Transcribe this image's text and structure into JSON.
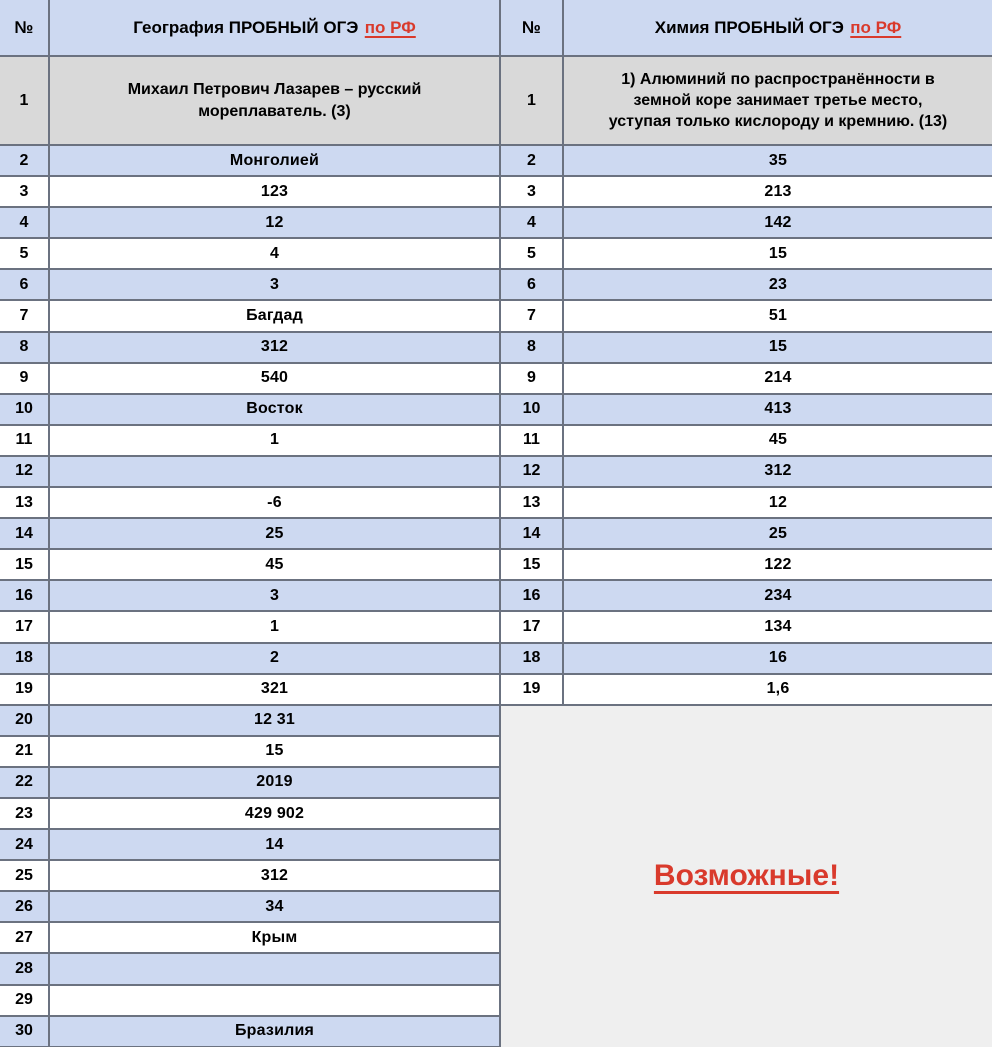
{
  "colors": {
    "row_blue": "#cdd9f1",
    "row_white": "#ffffff",
    "q1_gray": "#d9d9d9",
    "panel_gray": "#efefef",
    "border": "#6b7280",
    "accent_red": "#d93a2c",
    "text": "#000000"
  },
  "geography_table": {
    "header": {
      "number_label": "№",
      "title": "География ПРОБНЫЙ ОГЭ",
      "link_label": "по РФ"
    },
    "question1": {
      "number": "1",
      "text": "Михаил Петрович Лазарев – русский\nмореплаватель. (3)"
    },
    "rows": [
      {
        "n": "2",
        "v": "Монголией"
      },
      {
        "n": "3",
        "v": "123"
      },
      {
        "n": "4",
        "v": "12"
      },
      {
        "n": "5",
        "v": "4"
      },
      {
        "n": "6",
        "v": "3"
      },
      {
        "n": "7",
        "v": "Багдад"
      },
      {
        "n": "8",
        "v": "312"
      },
      {
        "n": "9",
        "v": "540"
      },
      {
        "n": "10",
        "v": "Восток"
      },
      {
        "n": "11",
        "v": "1"
      },
      {
        "n": "12",
        "v": ""
      },
      {
        "n": "13",
        "v": "-6"
      },
      {
        "n": "14",
        "v": "25"
      },
      {
        "n": "15",
        "v": "45"
      },
      {
        "n": "16",
        "v": "3"
      },
      {
        "n": "17",
        "v": "1"
      },
      {
        "n": "18",
        "v": "2"
      },
      {
        "n": "19",
        "v": "321"
      },
      {
        "n": "20",
        "v": "12 31"
      },
      {
        "n": "21",
        "v": "15"
      },
      {
        "n": "22",
        "v": "2019"
      },
      {
        "n": "23",
        "v": "429 902"
      },
      {
        "n": "24",
        "v": "14"
      },
      {
        "n": "25",
        "v": "312"
      },
      {
        "n": "26",
        "v": "34"
      },
      {
        "n": "27",
        "v": "Крым"
      },
      {
        "n": "28",
        "v": ""
      },
      {
        "n": "29",
        "v": ""
      },
      {
        "n": "30",
        "v": "Бразилия"
      }
    ]
  },
  "chemistry_table": {
    "header": {
      "number_label": "№",
      "title": "Химия ПРОБНЫЙ ОГЭ",
      "link_label": "по РФ"
    },
    "question1": {
      "number": "1",
      "text": "1) Алюминий по распространённости в\nземной коре занимает третье место,\nуступая только кислороду и кремнию. (13)"
    },
    "rows": [
      {
        "n": "2",
        "v": "35"
      },
      {
        "n": "3",
        "v": "213"
      },
      {
        "n": "4",
        "v": "142"
      },
      {
        "n": "5",
        "v": "15"
      },
      {
        "n": "6",
        "v": "23"
      },
      {
        "n": "7",
        "v": "51"
      },
      {
        "n": "8",
        "v": "15"
      },
      {
        "n": "9",
        "v": "214"
      },
      {
        "n": "10",
        "v": "413"
      },
      {
        "n": "11",
        "v": "45"
      },
      {
        "n": "12",
        "v": "312"
      },
      {
        "n": "13",
        "v": "12"
      },
      {
        "n": "14",
        "v": "25"
      },
      {
        "n": "15",
        "v": "122"
      },
      {
        "n": "16",
        "v": "234"
      },
      {
        "n": "17",
        "v": "134"
      },
      {
        "n": "18",
        "v": "16"
      },
      {
        "n": "19",
        "v": "1,6"
      }
    ],
    "footer_note": "Возможные!"
  }
}
